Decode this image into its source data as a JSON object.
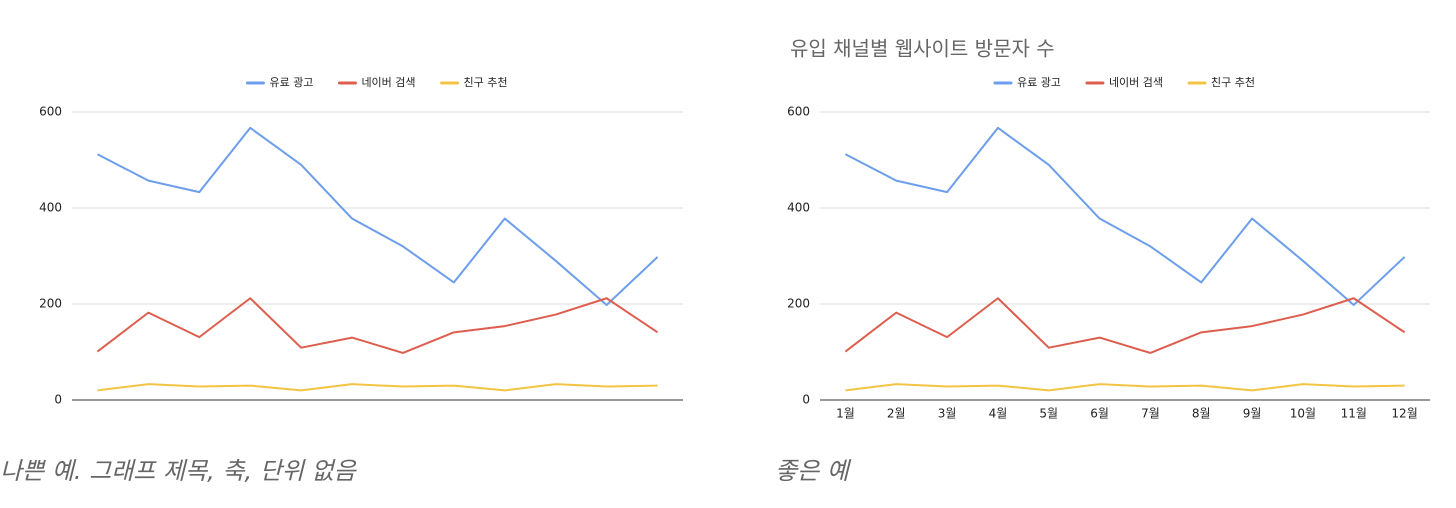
{
  "chart_data": [
    {
      "type": "line",
      "categories": [
        null,
        null,
        null,
        null,
        null,
        null,
        null,
        null,
        null,
        null,
        null,
        null
      ],
      "series": [
        {
          "name": "유료 광고",
          "color": "#6d9eeb",
          "values": [
            512,
            457,
            433,
            567,
            490,
            378,
            320,
            245,
            378,
            290,
            198,
            298
          ]
        },
        {
          "name": "네이버 검색",
          "color": "#dd5e4e",
          "values": [
            101,
            182,
            131,
            212,
            109,
            130,
            98,
            141,
            154,
            178,
            212,
            141
          ]
        },
        {
          "name": "친구 추천",
          "color": "#f3c444",
          "values": [
            20,
            33,
            28,
            30,
            20,
            33,
            28,
            30,
            20,
            33,
            28,
            30
          ]
        }
      ],
      "ylim": [
        0,
        600
      ],
      "yticks": [
        0,
        200,
        400,
        600
      ],
      "grid": true,
      "legend": "top"
    },
    {
      "type": "line",
      "title": "유입 채널별 웹사이트 방문자 수",
      "categories": [
        "1월",
        "2월",
        "3월",
        "4월",
        "5월",
        "6월",
        "7월",
        "8월",
        "9월",
        "10월",
        "11월",
        "12월"
      ],
      "series": [
        {
          "name": "유료 광고",
          "color": "#6d9eeb",
          "values": [
            512,
            457,
            433,
            567,
            490,
            378,
            320,
            245,
            378,
            290,
            198,
            298
          ]
        },
        {
          "name": "네이버 검색",
          "color": "#dd5e4e",
          "values": [
            101,
            182,
            131,
            212,
            109,
            130,
            98,
            141,
            154,
            178,
            212,
            141
          ]
        },
        {
          "name": "친구 추천",
          "color": "#f3c444",
          "values": [
            20,
            33,
            28,
            30,
            20,
            33,
            28,
            30,
            20,
            33,
            28,
            30
          ]
        }
      ],
      "ylim": [
        0,
        600
      ],
      "yticks": [
        0,
        200,
        400,
        600
      ],
      "grid": true,
      "legend": "top"
    }
  ],
  "captions": [
    "나쁜 예. 그래프 제목, 축, 단위 없음",
    "좋은 예"
  ]
}
